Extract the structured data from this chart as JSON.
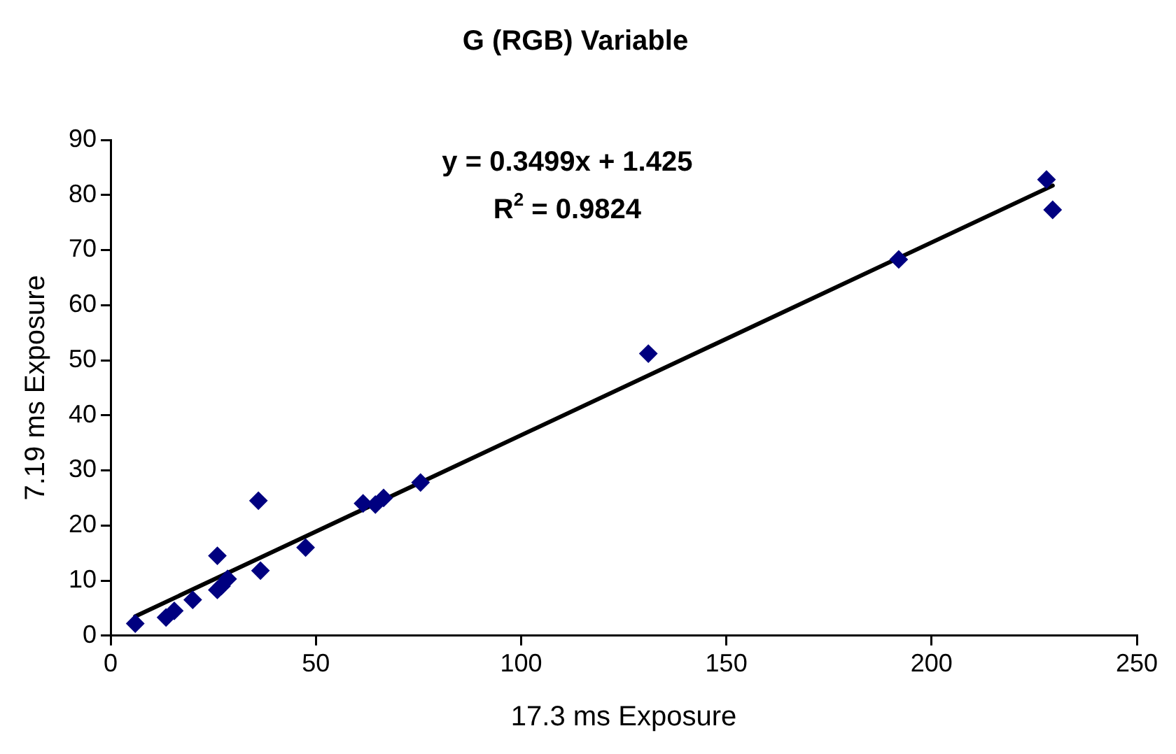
{
  "chart_data": {
    "type": "scatter",
    "title": "G (RGB) Variable",
    "xlabel": "17.3 ms Exposure",
    "ylabel": "7.19 ms Exposure",
    "xlim": [
      0,
      250
    ],
    "xticks": [
      0,
      50,
      100,
      150,
      200,
      250
    ],
    "ylim": [
      0,
      90
    ],
    "yticks": [
      0,
      10,
      20,
      30,
      40,
      50,
      60,
      70,
      80,
      90
    ],
    "grid": false,
    "legend": false,
    "marker": "diamond",
    "annotations": [
      "y = 0.3499x + 1.425",
      "R$^{2}$ = 0.9824"
    ],
    "series": [
      {
        "color": "#000080",
        "x": [
          6,
          13.5,
          15.5,
          20,
          26,
          26,
          27,
          28.5,
          36,
          36.5,
          47.5,
          61.5,
          64.5,
          66.5,
          75.5,
          131,
          192,
          228,
          229.5
        ],
        "values": [
          2.2,
          3.3,
          4.5,
          6.5,
          14.5,
          8.3,
          9,
          10.3,
          24.5,
          11.8,
          16,
          24,
          23.8,
          25,
          27.8,
          51.2,
          68.3,
          82.8,
          77.3
        ]
      },
      {
        "type": "line",
        "color": "#000000",
        "line_style": "solid",
        "marker": "none",
        "x": [
          6,
          229.5
        ],
        "values": [
          3.5,
          81.7
        ]
      }
    ]
  }
}
